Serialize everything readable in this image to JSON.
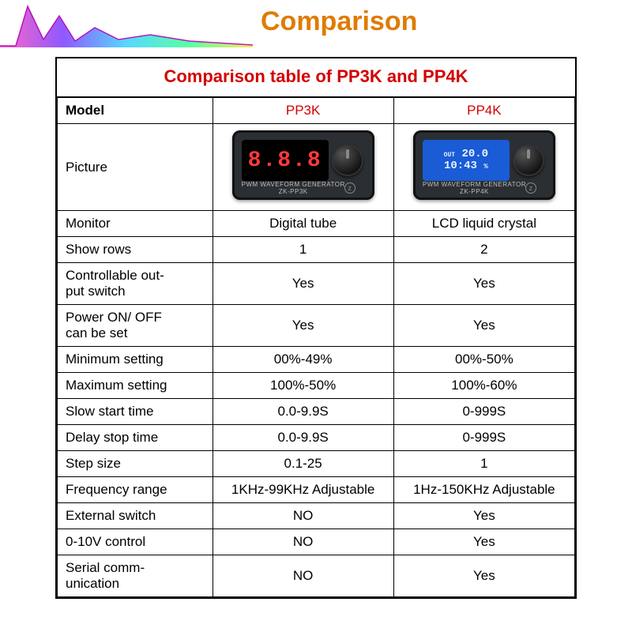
{
  "header": {
    "title": "Comparison"
  },
  "caption": "Comparison table of PP3K and PP4K",
  "columns": {
    "label": "Model",
    "c1": "PP3K",
    "c2": "PP4K"
  },
  "picture_row_label": "Picture",
  "device_pp3k": {
    "segment_text": "8.8.8",
    "sublabel": "PWM WAVEFORM GENERATOR",
    "model_text": "ZK-PP3K",
    "body_color": "#2b2f33",
    "screen_bg": "#000000",
    "segment_color": "#ff3a3a"
  },
  "device_pp4k": {
    "line1_label": "OUT",
    "line1_value": "20.0",
    "line2_value": "10:43",
    "line2_unit": "%",
    "sublabel": "PWM WAVEFORM GENERATOR",
    "model_text": "ZK-PP4K",
    "body_color": "#2b2f33",
    "screen_bg": "#1a5bd6",
    "text_color": "#eaf2ff"
  },
  "rows": [
    {
      "label": "Monitor",
      "c1": "Digital tube",
      "c2": "LCD liquid crystal"
    },
    {
      "label": "Show rows",
      "c1": "1",
      "c2": "2"
    },
    {
      "label": "Controllable out-\nput switch",
      "c1": "Yes",
      "c2": "Yes"
    },
    {
      "label": "Power ON/ OFF\ncan be set",
      "c1": "Yes",
      "c2": "Yes"
    },
    {
      "label": "Minimum setting",
      "c1": "00%-49%",
      "c2": "00%-50%"
    },
    {
      "label": "Maximum setting",
      "c1": "100%-50%",
      "c2": "100%-60%"
    },
    {
      "label": "Slow start time",
      "c1": "0.0-9.9S",
      "c2": "0-999S"
    },
    {
      "label": "Delay stop time",
      "c1": "0.0-9.9S",
      "c2": "0-999S"
    },
    {
      "label": "Step size",
      "c1": "0.1-25",
      "c2": "1"
    },
    {
      "label": "Frequency range",
      "c1": "1KHz-99KHz Adjustable",
      "c2": "1Hz-150KHz Adjustable"
    },
    {
      "label": "External switch",
      "c1": "NO",
      "c2": "Yes"
    },
    {
      "label": "0-10V control",
      "c1": "NO",
      "c2": "Yes"
    },
    {
      "label": "Serial comm-\nunication",
      "c1": "NO",
      "c2": "Yes"
    }
  ],
  "style": {
    "accent_color": "#d40000",
    "title_color": "#e07b00",
    "border_color": "#000000",
    "background": "#ffffff",
    "font_size_body": 17,
    "font_size_caption": 22,
    "font_size_title": 34,
    "wave_colors": [
      "#ff4db8",
      "#7a3cff",
      "#38d1ff",
      "#3cff94",
      "#ffe63c"
    ]
  }
}
